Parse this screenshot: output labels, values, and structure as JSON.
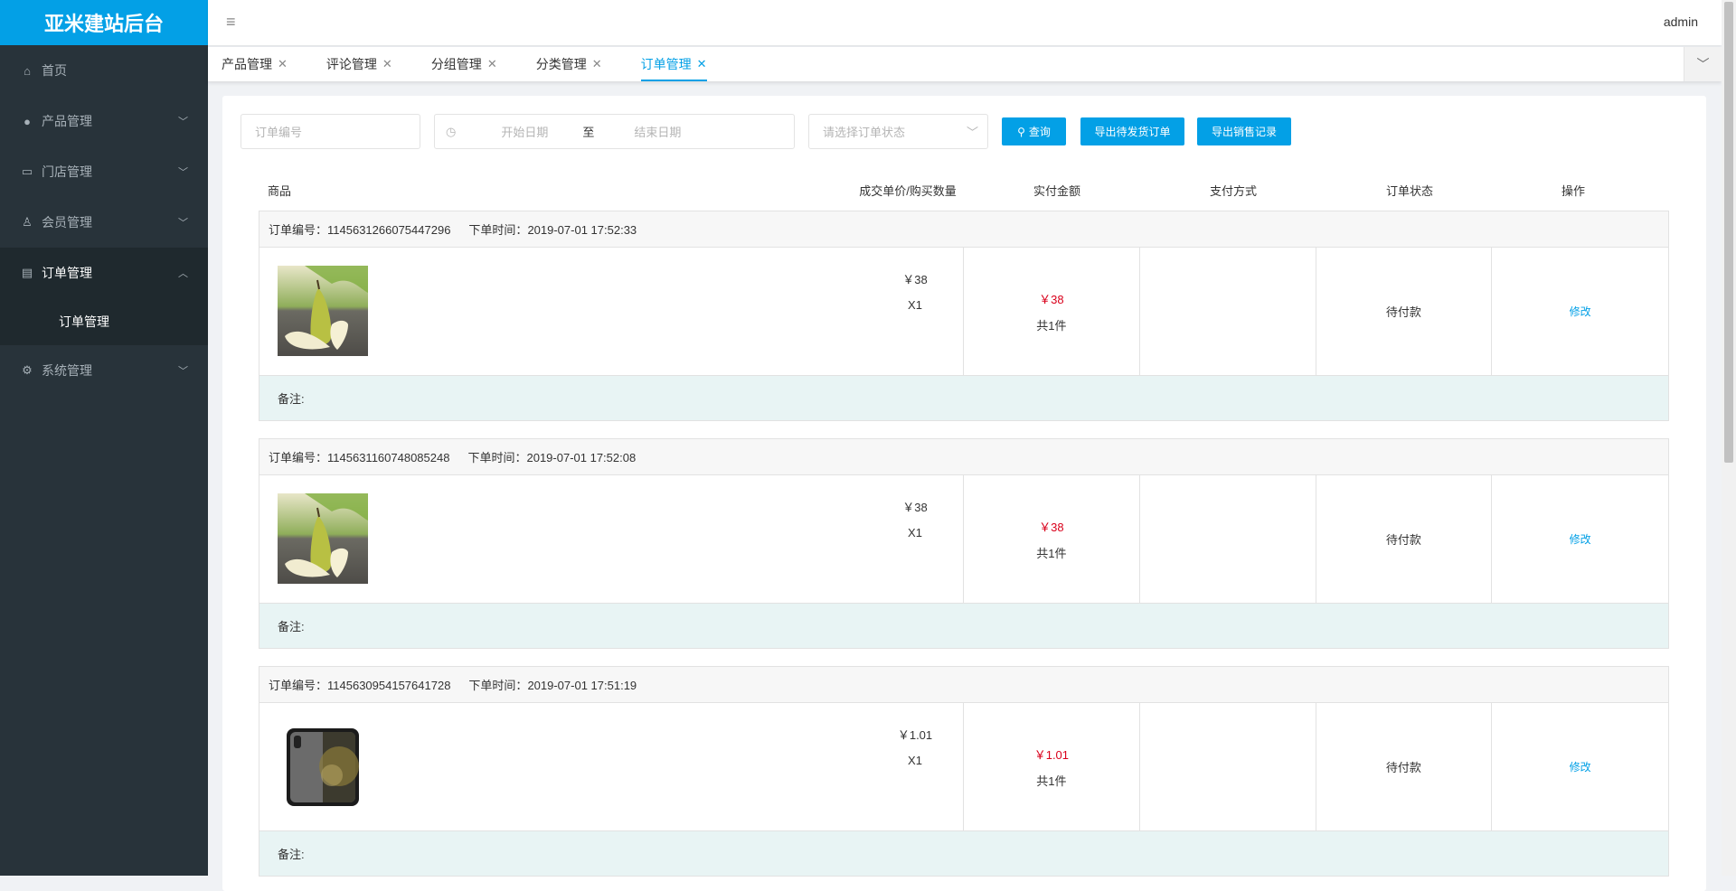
{
  "app": {
    "title": "亚米建站后台",
    "user": "admin"
  },
  "sidebar": {
    "items": [
      {
        "label": "首页",
        "icon": "home-icon"
      },
      {
        "label": "产品管理",
        "icon": "user-icon"
      },
      {
        "label": "门店管理",
        "icon": "store-icon"
      },
      {
        "label": "会员管理",
        "icon": "member-icon"
      },
      {
        "label": "订单管理",
        "icon": "document-icon",
        "sub": "订单管理"
      },
      {
        "label": "系统管理",
        "icon": "gear-icon"
      }
    ]
  },
  "tabs": [
    "产品管理",
    "评论管理",
    "分组管理",
    "分类管理",
    "订单管理"
  ],
  "filters": {
    "order_no_placeholder": "订单编号",
    "start_placeholder": "开始日期",
    "to": "至",
    "end_placeholder": "结束日期",
    "status_placeholder": "请选择订单状态",
    "query": "查询",
    "export_pending": "导出待发货订单",
    "export_sales": "导出销售记录"
  },
  "columns": [
    "商品",
    "成交单价/购买数量",
    "实付金额",
    "支付方式",
    "订单状态",
    "操作"
  ],
  "labels": {
    "order_no": "订单编号：",
    "order_time": "下单时间：",
    "remark": "备注:"
  },
  "orders": [
    {
      "no": "1145631266075447296",
      "time": "2019-07-01 17:52:33",
      "product": "pear",
      "unit_price": "￥38",
      "qty": "X1",
      "paid": "￥38",
      "count": "共1件",
      "payment": "",
      "status": "待付款",
      "action": "修改"
    },
    {
      "no": "1145631160748085248",
      "time": "2019-07-01 17:52:08",
      "product": "pear",
      "unit_price": "￥38",
      "qty": "X1",
      "paid": "￥38",
      "count": "共1件",
      "payment": "",
      "status": "待付款",
      "action": "修改"
    },
    {
      "no": "1145630954157641728",
      "time": "2019-07-01 17:51:19",
      "product": "phone",
      "unit_price": "￥1.01",
      "qty": "X1",
      "paid": "￥1.01",
      "count": "共1件",
      "payment": "",
      "status": "待付款",
      "action": "修改"
    }
  ],
  "colors": {
    "accent": "#03a0e6",
    "price_red": "#d9001b",
    "sidebar": "#28333a"
  }
}
